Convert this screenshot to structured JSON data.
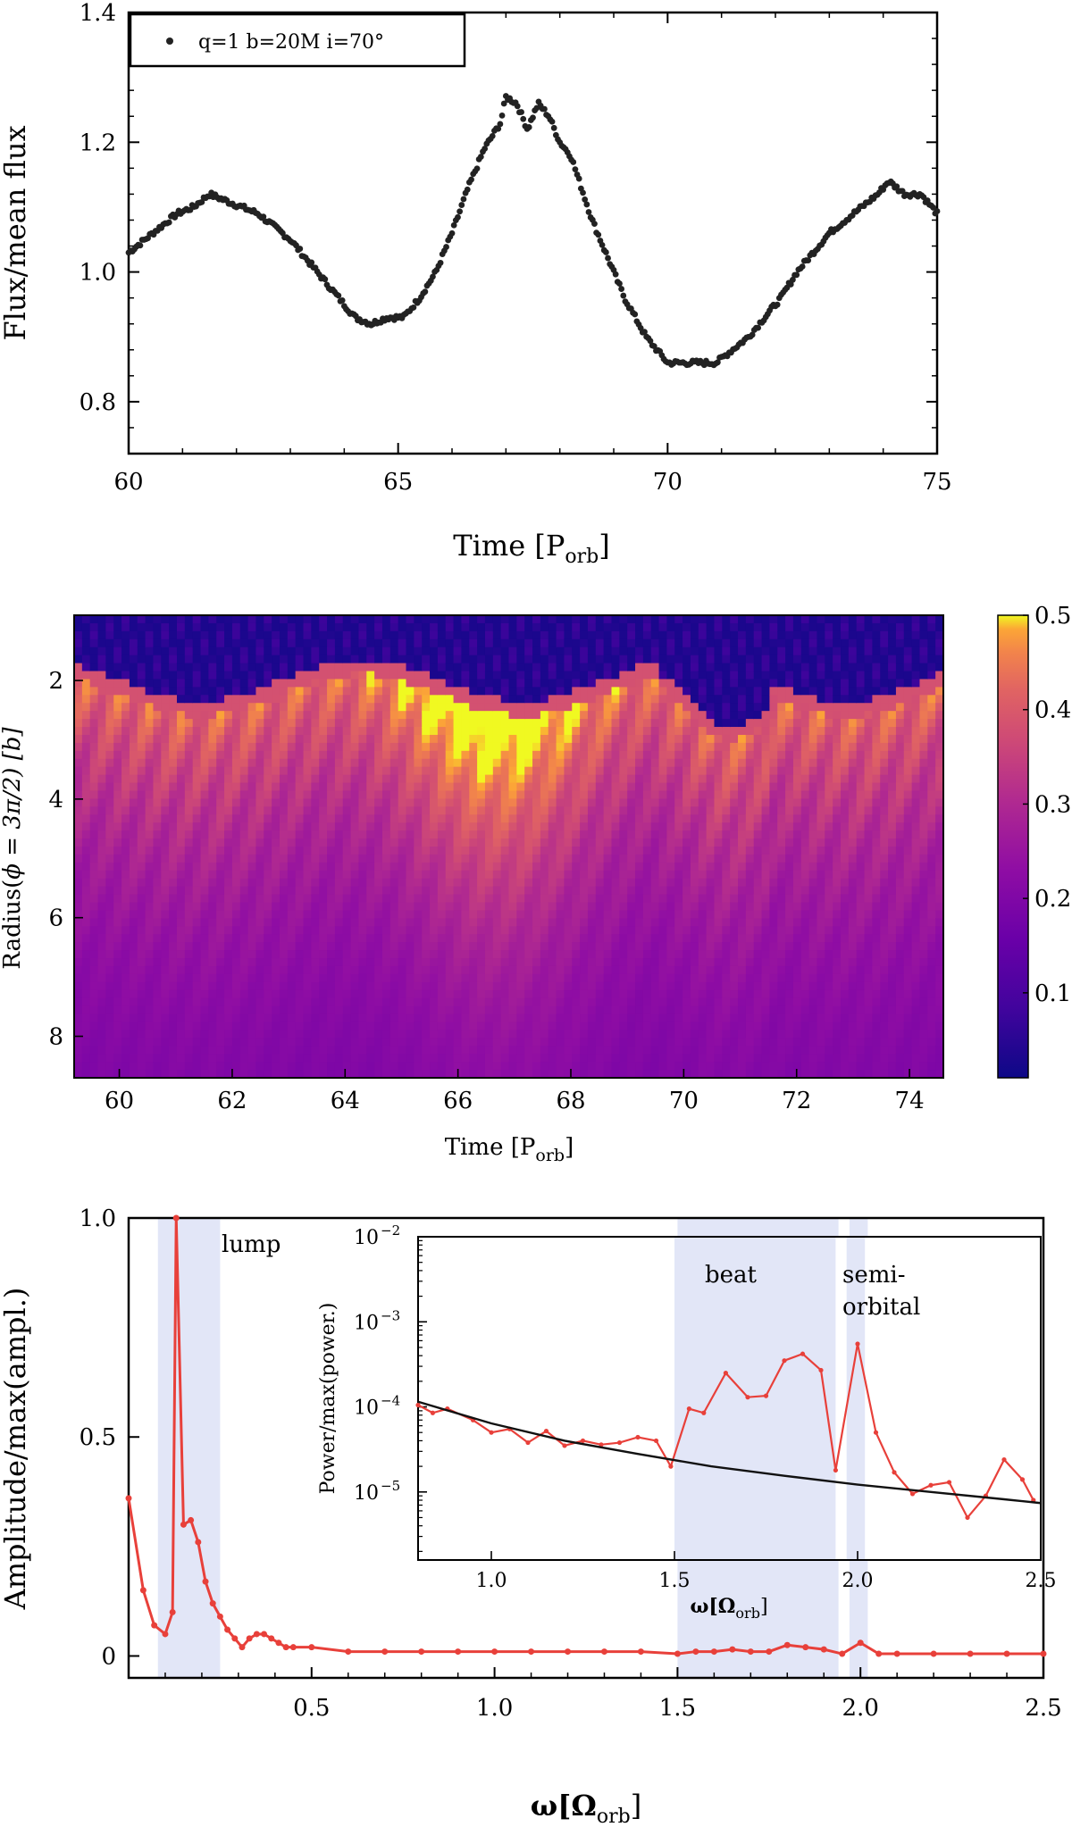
{
  "chart_data": [
    {
      "type": "scatter",
      "xlabel": "Time [P",
      "xlabel_sub": "orb",
      "ylabel": "Flux/mean flux",
      "xlim": [
        60,
        75
      ],
      "ylim": [
        0.72,
        1.4
      ],
      "xticks": [
        "60",
        "65",
        "70",
        "75"
      ],
      "yticks": [
        "0.8",
        "1.0",
        "1.2",
        "1.4"
      ],
      "legend": {
        "label": "q=1  b=20M  i=70°",
        "position": "top-left"
      },
      "series": [
        {
          "name": "q=1  b=20M  i=70°",
          "color": "#222222",
          "x": [
            60.0,
            60.3,
            60.6,
            60.9,
            61.2,
            61.5,
            61.8,
            62.1,
            62.4,
            62.7,
            63.0,
            63.3,
            63.6,
            63.9,
            64.2,
            64.5,
            64.8,
            65.1,
            65.4,
            65.7,
            66.0,
            66.3,
            66.6,
            66.9,
            67.0,
            67.2,
            67.4,
            67.6,
            67.8,
            68.0,
            68.2,
            68.4,
            68.6,
            68.8,
            69.0,
            69.2,
            69.4,
            69.6,
            69.8,
            70.0,
            70.3,
            70.6,
            70.9,
            71.2,
            71.5,
            71.8,
            72.1,
            72.4,
            72.7,
            73.0,
            73.3,
            73.6,
            73.9,
            74.1,
            74.4,
            74.7,
            75.0
          ],
          "y": [
            1.03,
            1.05,
            1.07,
            1.09,
            1.1,
            1.12,
            1.11,
            1.1,
            1.09,
            1.07,
            1.05,
            1.02,
            0.99,
            0.96,
            0.93,
            0.92,
            0.93,
            0.93,
            0.96,
            1.0,
            1.06,
            1.13,
            1.19,
            1.23,
            1.27,
            1.26,
            1.22,
            1.26,
            1.24,
            1.2,
            1.18,
            1.13,
            1.08,
            1.04,
            1.0,
            0.96,
            0.93,
            0.9,
            0.88,
            0.86,
            0.86,
            0.86,
            0.86,
            0.88,
            0.9,
            0.93,
            0.96,
            1.0,
            1.03,
            1.06,
            1.08,
            1.1,
            1.12,
            1.14,
            1.12,
            1.12,
            1.09
          ]
        }
      ]
    },
    {
      "type": "heatmap",
      "xlabel": "Time [P",
      "xlabel_sub": "orb",
      "ylabel": "Radius(",
      "ylabel_phi": "ϕ = 3π/2) [b]",
      "xlim": [
        59.2,
        74.6
      ],
      "ylim": [
        8.7,
        0.9
      ],
      "xticks": [
        "60",
        "62",
        "64",
        "66",
        "68",
        "70",
        "72",
        "74"
      ],
      "yticks": [
        "2",
        "4",
        "6",
        "8"
      ],
      "colorbar": {
        "range": [
          0.01,
          0.5
        ],
        "ticks": [
          "0.1",
          "0.2",
          "0.3",
          "0.4",
          "0.5"
        ],
        "colormap": "plasma"
      },
      "features": {
        "bright_band_peak_radius": 2.6,
        "peak_region_time": 66.5,
        "dark_region_below_radius": 2.0
      }
    },
    {
      "type": "line",
      "xlabel": "ω[Ω",
      "xlabel_sub": "orb",
      "ylabel": "Amplitude/max(ampl.)",
      "xlim": [
        0.0,
        2.5
      ],
      "ylim": [
        -0.05,
        1.0
      ],
      "xticks": [
        "0.5",
        "1.0",
        "1.5",
        "2.0",
        "2.5"
      ],
      "yticks": [
        "0",
        "0.5",
        "1.0"
      ],
      "shaded_bands": [
        {
          "label": "lump",
          "range": [
            0.08,
            0.25
          ]
        },
        {
          "label": "",
          "range": [
            1.5,
            1.94
          ]
        },
        {
          "label": "",
          "range": [
            1.97,
            2.02
          ]
        }
      ],
      "series": [
        {
          "name": "",
          "color": "#e8403a",
          "x": [
            0.0,
            0.04,
            0.07,
            0.1,
            0.12,
            0.13,
            0.15,
            0.17,
            0.19,
            0.21,
            0.23,
            0.25,
            0.27,
            0.29,
            0.31,
            0.33,
            0.35,
            0.37,
            0.39,
            0.41,
            0.43,
            0.45,
            0.5,
            0.6,
            0.7,
            0.8,
            0.9,
            1.0,
            1.1,
            1.2,
            1.3,
            1.4,
            1.5,
            1.55,
            1.6,
            1.65,
            1.7,
            1.75,
            1.8,
            1.85,
            1.9,
            1.95,
            2.0,
            2.05,
            2.1,
            2.2,
            2.3,
            2.4,
            2.5
          ],
          "y": [
            0.36,
            0.15,
            0.07,
            0.05,
            0.1,
            1.0,
            0.3,
            0.31,
            0.26,
            0.17,
            0.12,
            0.09,
            0.06,
            0.04,
            0.02,
            0.04,
            0.05,
            0.05,
            0.04,
            0.03,
            0.02,
            0.02,
            0.02,
            0.01,
            0.01,
            0.01,
            0.01,
            0.01,
            0.01,
            0.01,
            0.01,
            0.01,
            0.005,
            0.01,
            0.01,
            0.015,
            0.01,
            0.01,
            0.025,
            0.02,
            0.015,
            0.005,
            0.03,
            0.005,
            0.005,
            0.005,
            0.005,
            0.005,
            0.005
          ]
        }
      ],
      "inset": {
        "type": "line",
        "xlabel": "ω[Ω",
        "xlabel_sub": "orb",
        "ylabel": "Power/max(power.)",
        "xlim": [
          0.8,
          2.5
        ],
        "ylim_log10": [
          -5.8,
          -2.0
        ],
        "xticks": [
          "1.0",
          "1.5",
          "2.0",
          "2.5"
        ],
        "yticks": [
          "10",
          "10",
          "10",
          "10"
        ],
        "ytick_exponents": [
          "−2",
          "−3",
          "−4",
          "−5"
        ],
        "shaded_bands": [
          {
            "label": "beat",
            "range": [
              1.5,
              1.94
            ]
          },
          {
            "label": "semi-",
            "label2": "orbital",
            "range": [
              1.97,
              2.02
            ]
          }
        ],
        "series": [
          {
            "name": "",
            "color": "#e8403a",
            "x": [
              0.8,
              0.84,
              0.88,
              0.95,
              1.0,
              1.05,
              1.1,
              1.15,
              1.2,
              1.25,
              1.3,
              1.35,
              1.4,
              1.45,
              1.49,
              1.54,
              1.58,
              1.64,
              1.7,
              1.75,
              1.8,
              1.85,
              1.9,
              1.94,
              2.0,
              2.05,
              2.1,
              2.15,
              2.2,
              2.25,
              2.3,
              2.35,
              2.4,
              2.45,
              2.48
            ],
            "y": [
              0.000105,
              8.5e-05,
              9.5e-05,
              7e-05,
              5e-05,
              5.5e-05,
              3.8e-05,
              5.2e-05,
              3.5e-05,
              4e-05,
              3.6e-05,
              3.8e-05,
              4.4e-05,
              4e-05,
              2e-05,
              9.5e-05,
              8.5e-05,
              0.00025,
              0.00013,
              0.000135,
              0.00035,
              0.00042,
              0.00027,
              1.8e-05,
              0.00055,
              5e-05,
              1.7e-05,
              9.5e-06,
              1.2e-05,
              1.3e-05,
              5e-06,
              9e-06,
              2.4e-05,
              1.4e-05,
              8e-06
            ]
          },
          {
            "name": "",
            "color": "#111111",
            "x": [
              0.8,
              1.0,
              1.2,
              1.4,
              1.6,
              1.8,
              2.0,
              2.2,
              2.4,
              2.5
            ],
            "y": [
              0.000115,
              6.4e-05,
              4e-05,
              2.8e-05,
              2e-05,
              1.55e-05,
              1.22e-05,
              1e-05,
              8.2e-06,
              7.4e-06
            ]
          }
        ]
      }
    }
  ]
}
